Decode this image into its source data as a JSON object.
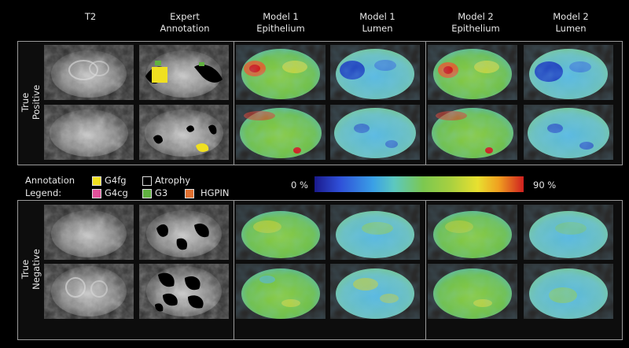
{
  "columns": [
    "T2",
    "Expert\nAnnotation",
    "Model 1\nEpithelium",
    "Model 1\nLumen",
    "Model 2\nEpithelium",
    "Model 2\nLumen"
  ],
  "rows": [
    "True\nPositive",
    "True\nNegative"
  ],
  "legend": {
    "title_line1": "Annotation",
    "title_line2": "Legend:",
    "items": [
      {
        "label": "G4fg",
        "color": "#f0e020"
      },
      {
        "label": "Atrophy",
        "color": "#000000"
      },
      {
        "label": "G4cg",
        "color": "#e0509a"
      },
      {
        "label": "G3",
        "color": "#60b040"
      },
      {
        "label": "HGPIN",
        "color": "#e07030"
      }
    ]
  },
  "colorbar": {
    "min_label": "0 %",
    "max_label": "90 %",
    "min": 0,
    "max": 90
  }
}
